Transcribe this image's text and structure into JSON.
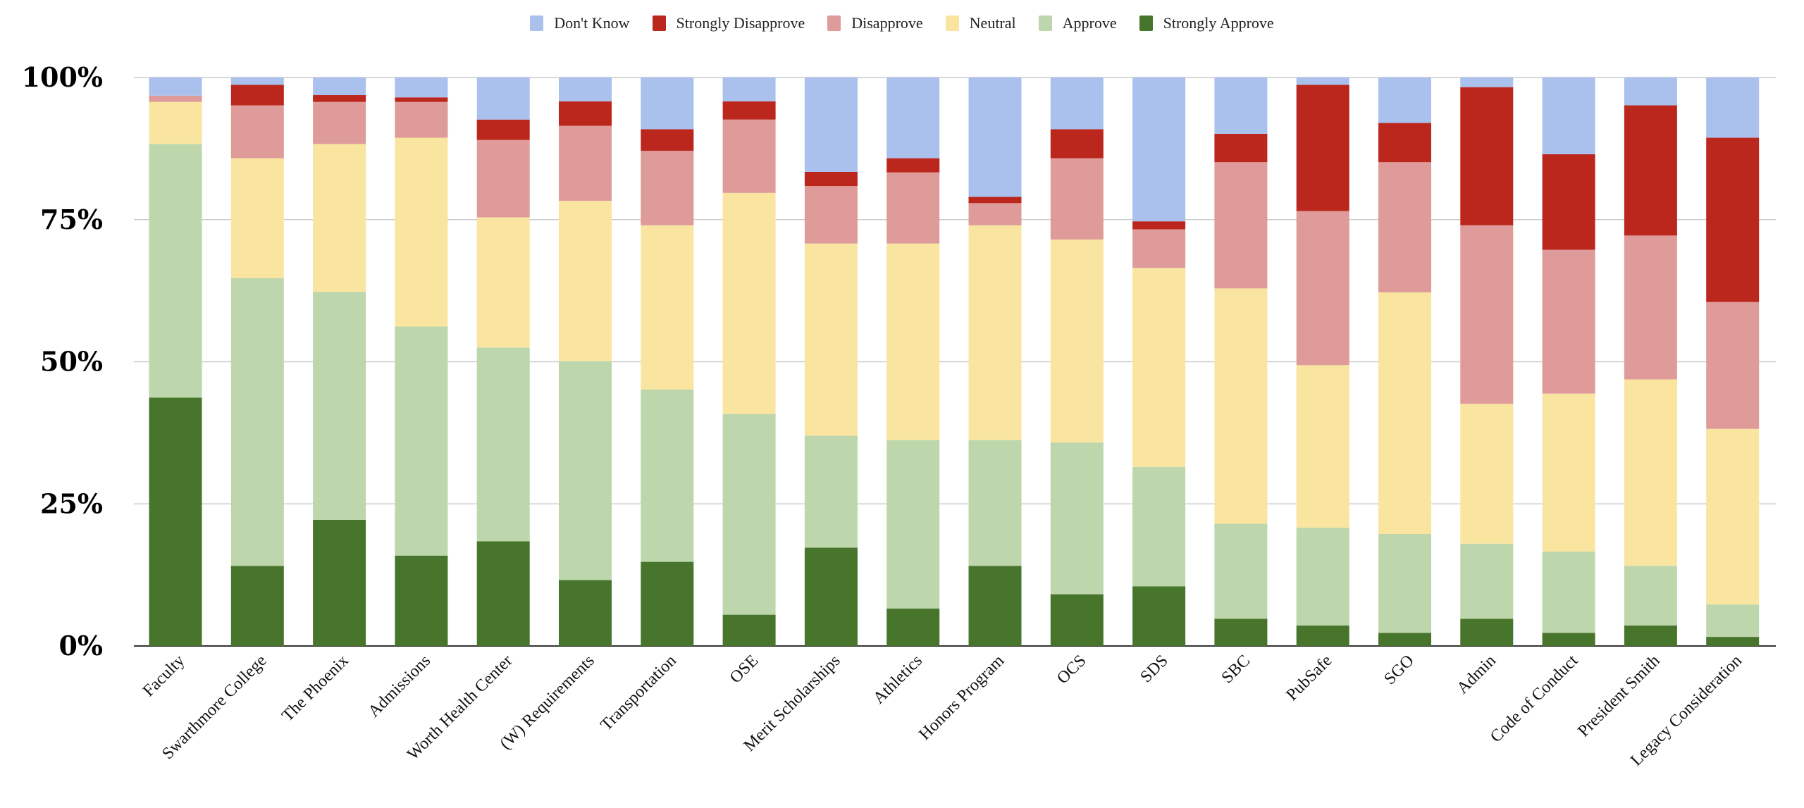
{
  "chart_data": {
    "type": "bar",
    "stacked": true,
    "normalized": true,
    "title": "",
    "xlabel": "",
    "ylabel": "",
    "ylim": [
      0,
      100
    ],
    "y_ticks": [
      "0%",
      "25%",
      "50%",
      "75%",
      "100%"
    ],
    "y_tick_values": [
      0,
      25,
      50,
      75,
      100
    ],
    "grid": true,
    "legend_position": "top-center",
    "categories": [
      "Faculty",
      "Swarthmore College",
      "The Phoenix",
      "Admissions",
      "Worth Health Center",
      "(W) Requirements",
      "Transportation",
      "OSE",
      "Merit Scholarships",
      "Athletics",
      "Honors Program",
      "OCS",
      "SDS",
      "SBC",
      "PubSafe",
      "SGO",
      "Admin",
      "Code of Conduct",
      "President Smith",
      "Legacy Consideration"
    ],
    "series": [
      {
        "name": "Strongly Approve",
        "color": "#48752c",
        "values": [
          43.7,
          14.1,
          22.2,
          15.9,
          18.4,
          11.6,
          14.8,
          5.5,
          17.3,
          6.6,
          14.1,
          9.1,
          10.5,
          4.8,
          3.6,
          2.3,
          4.8,
          2.3,
          3.6,
          1.6
        ]
      },
      {
        "name": "Approve",
        "color": "#bdd6ac",
        "values": [
          44.6,
          50.6,
          40.1,
          40.3,
          34.1,
          38.5,
          30.3,
          35.3,
          19.7,
          29.6,
          22.1,
          26.7,
          21.0,
          16.7,
          17.2,
          17.4,
          13.2,
          14.3,
          10.5,
          5.7
        ]
      },
      {
        "name": "Neutral",
        "color": "#f9e5a0",
        "values": [
          7.4,
          21.1,
          26.0,
          33.2,
          22.9,
          28.2,
          28.9,
          38.9,
          33.8,
          34.6,
          37.8,
          35.7,
          35.0,
          41.4,
          28.6,
          42.5,
          24.6,
          27.8,
          32.8,
          30.9
        ]
      },
      {
        "name": "Disapprove",
        "color": "#de9b99",
        "values": [
          1.1,
          9.3,
          7.4,
          6.3,
          13.6,
          13.2,
          13.1,
          12.9,
          10.1,
          12.5,
          3.9,
          14.3,
          6.8,
          22.2,
          27.1,
          22.9,
          31.4,
          25.3,
          25.3,
          22.3
        ]
      },
      {
        "name": "Strongly Disapprove",
        "color": "#bb271d",
        "values": [
          0.0,
          3.6,
          1.2,
          0.8,
          3.6,
          4.3,
          3.8,
          3.2,
          2.5,
          2.5,
          1.1,
          5.1,
          1.4,
          5.0,
          22.2,
          6.9,
          24.3,
          16.8,
          22.9,
          28.9
        ]
      },
      {
        "name": "Don't Know",
        "color": "#aac0ed",
        "values": [
          3.2,
          1.3,
          3.1,
          3.5,
          7.4,
          4.2,
          9.1,
          4.2,
          16.6,
          14.2,
          21.0,
          9.1,
          25.3,
          9.9,
          1.3,
          8.0,
          1.7,
          13.5,
          4.9,
          10.6
        ]
      }
    ],
    "legend_order": [
      "Don't Know",
      "Strongly Disapprove",
      "Disapprove",
      "Neutral",
      "Approve",
      "Strongly Approve"
    ]
  },
  "colors": {
    "gridline": "#cccccc",
    "baseline": "#333333"
  }
}
